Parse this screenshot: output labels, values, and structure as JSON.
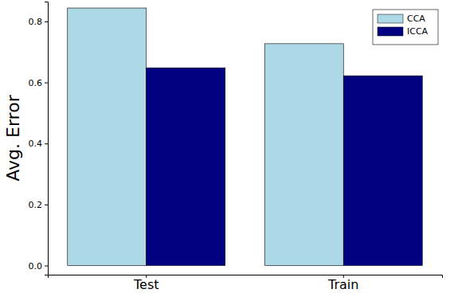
{
  "chart_data": {
    "type": "bar",
    "y_label": "Avg. Error",
    "categories": [
      "Test",
      "Train"
    ],
    "series": [
      {
        "name": "CCA",
        "color": "#add8e6",
        "values": [
          0.844,
          0.727
        ]
      },
      {
        "name": "ICCA",
        "color": "#000080",
        "values": [
          0.648,
          0.622
        ]
      }
    ],
    "ylim": [
      -0.03,
      0.865
    ],
    "yticks": [
      {
        "value": 0,
        "label": "0.0"
      },
      {
        "value": 0.2,
        "label": "0.2"
      },
      {
        "value": 0.4,
        "label": "0.4"
      },
      {
        "value": 0.6,
        "label": "0.6"
      },
      {
        "value": 0.8,
        "label": "0.8"
      }
    ],
    "legend": "top-right",
    "grid": false
  }
}
